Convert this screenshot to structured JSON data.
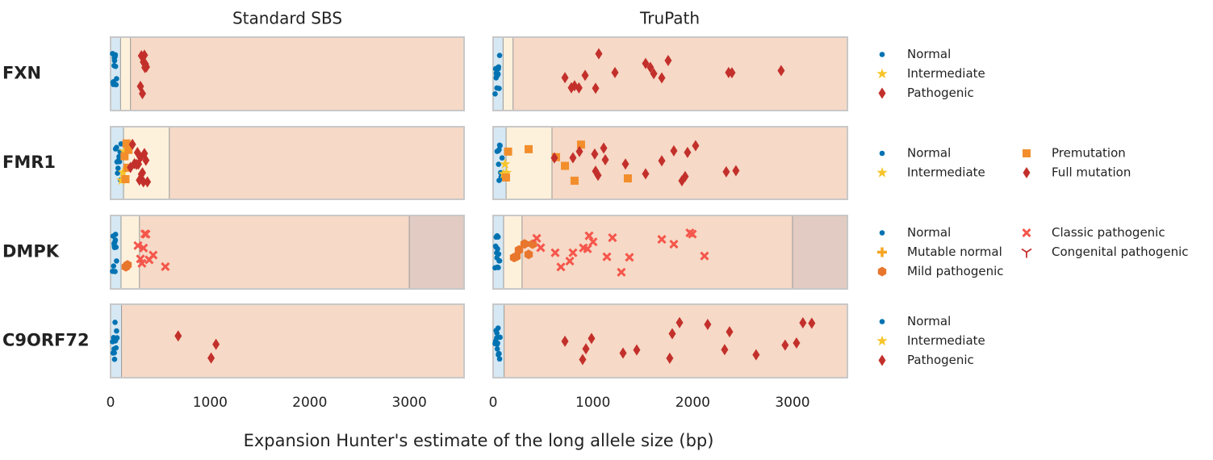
{
  "chart_data": {
    "type": "strip",
    "columns": [
      "Standard SBS",
      "TruPath"
    ],
    "xlabel": "Expansion Hunter's estimate of the long allele size (bp)",
    "xlim": [
      0,
      3550
    ],
    "xticks": [
      0,
      1000,
      2000,
      3000
    ],
    "genes": [
      {
        "name": "FXN",
        "region_edges": [
          100,
          200
        ],
        "region_colors": [
          "#d5e8f4",
          "#fdf1dc",
          "#f6d9c6"
        ],
        "series": [
          {
            "name": "Normal",
            "color": "#0173b2",
            "marker": "circle",
            "values": [
              [
                20,
                30,
                35,
                40,
                45,
                50,
                55,
                60,
                28,
                38,
                48,
                25
              ],
              [
                20,
                25,
                30,
                35,
                40,
                45,
                50,
                55,
                60,
                65,
                32,
                42,
                52,
                38
              ]
            ]
          },
          {
            "name": "Intermediate",
            "color": "#f7c52a",
            "marker": "star",
            "values": [
              [],
              []
            ]
          },
          {
            "name": "Pathogenic",
            "color": "#c3302b",
            "marker": "diamond",
            "values": [
              [
                300,
                320,
                330,
                340,
                350,
                360,
                310,
                345
              ],
              [
                720,
                784,
                816,
                922,
                1027,
                1059,
                1221,
                1528,
                1576,
                1610,
                1690,
                1754,
                2360,
                2393,
                2886,
                860
              ]
            ]
          }
        ]
      },
      {
        "name": "FMR1",
        "region_edges": [
          130,
          590
        ],
        "region_colors": [
          "#d5e8f4",
          "#fdf1dc",
          "#f6d9c6"
        ],
        "series": [
          {
            "name": "Normal",
            "color": "#0173b2",
            "marker": "circle",
            "values": [
              [
                50,
                60,
                70,
                80,
                90,
                100,
                65,
                75,
                85,
                95,
                105
              ],
              [
                40,
                50,
                60,
                70,
                80,
                90,
                55,
                65,
                75,
                85,
                95,
                60
              ]
            ]
          },
          {
            "name": "Intermediate",
            "color": "#f7c52a",
            "marker": "star",
            "values": [
              [
                110,
                125,
                138
              ],
              [
                105,
                120,
                135
              ]
            ]
          },
          {
            "name": "Premutation",
            "color": "#f28e2b",
            "marker": "square",
            "values": [
              [
                140,
                150,
                160,
                170,
                180
              ],
              [
                129,
                150,
                356,
                630,
                720,
                816,
                881,
                1350
              ]
            ]
          },
          {
            "name": "Full mutation",
            "color": "#c3302b",
            "marker": "diamond",
            "values": [
              [
                200,
                220,
                240,
                260,
                270,
                280,
                290,
                300,
                310,
                320,
                330,
                340,
                355,
                370
              ],
              [
                614,
                800,
                865,
                1018,
                1027,
                1051,
                1108,
                1124,
                1326,
                1528,
                1690,
                1811,
                1892,
                1924,
                1948,
                2029,
                2336,
                2433
              ]
            ]
          }
        ]
      },
      {
        "name": "DMPK",
        "region_edges": [
          105,
          290,
          3000
        ],
        "region_colors": [
          "#d5e8f4",
          "#fdf1dc",
          "#f6d9c6",
          "#e2cbc2"
        ],
        "series": [
          {
            "name": "Normal",
            "color": "#0173b2",
            "marker": "circle",
            "values": [
              [
                20,
                25,
                30,
                35,
                40,
                45,
                50,
                55,
                60,
                38,
                42,
                48
              ],
              [
                20,
                25,
                30,
                35,
                40,
                45,
                50,
                55,
                60,
                65,
                32,
                42,
                52,
                38
              ]
            ]
          },
          {
            "name": "Mutable normal",
            "color": "#f5a623",
            "marker": "plus",
            "values": [
              [],
              []
            ]
          },
          {
            "name": "Mild pathogenic",
            "color": "#e8762d",
            "marker": "hexagon",
            "values": [
              [
                154,
                170
              ],
              [
                210,
                234,
                259,
                315,
                356,
                396
              ]
            ]
          },
          {
            "name": "Classic pathogenic",
            "color": "#f5564b",
            "marker": "x",
            "values": [
              [
                275,
                315,
                331,
                356,
                388,
                428,
                550,
                300,
                345
              ],
              [
                437,
                477,
                622,
                679,
                768,
                800,
                905,
                946,
                962,
                1002,
                1140,
                1196,
                1285,
                1366,
                1690,
                1811,
                1972,
                1997,
                2118
              ]
            ]
          },
          {
            "name": "Congenital pathogenic",
            "color": "#c3302b",
            "marker": "tri",
            "values": [
              [],
              []
            ]
          }
        ]
      },
      {
        "name": "C9ORF72",
        "region_edges": [
          110
        ],
        "region_colors": [
          "#d5e8f4",
          "#f6d9c6"
        ],
        "series": [
          {
            "name": "Normal",
            "color": "#0173b2",
            "marker": "circle",
            "values": [
              [
                20,
                25,
                30,
                35,
                40,
                45,
                50,
                55,
                60,
                65,
                38,
                48
              ],
              [
                20,
                25,
                30,
                35,
                40,
                45,
                50,
                55,
                60,
                65,
                70,
                32,
                42,
                52,
                38
              ]
            ]
          },
          {
            "name": "Intermediate",
            "color": "#f7c52a",
            "marker": "star",
            "values": [
              [],
              []
            ]
          },
          {
            "name": "Pathogenic",
            "color": "#c3302b",
            "marker": "diamond",
            "values": [
              [
                679,
                1010,
                1059
              ],
              [
                720,
                897,
                930,
                986,
                1302,
                1439,
                1770,
                1795,
                1868,
                2150,
                2320,
                2369,
                2635,
                2926,
                3040,
                3104,
                3193
              ]
            ]
          }
        ]
      }
    ]
  }
}
